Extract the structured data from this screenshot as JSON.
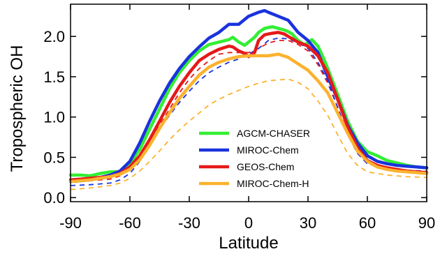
{
  "chart_data": {
    "type": "line",
    "xlabel": "Latitude",
    "ylabel": "Tropospheric OH",
    "xlim": [
      -90,
      90
    ],
    "ylim": [
      -0.05,
      2.4
    ],
    "xticks": [
      -90,
      -60,
      -30,
      0,
      30,
      60,
      90
    ],
    "xtick_labels": [
      "-90",
      "-60",
      "-30",
      "0",
      "30",
      "60",
      "90"
    ],
    "yticks": [
      0.0,
      0.5,
      1.0,
      1.5,
      2.0
    ],
    "ytick_labels": [
      "0.0",
      "0.5",
      "1.0",
      "1.5",
      "2.0"
    ],
    "grid": false,
    "legend_position": "lower-center",
    "series": [
      {
        "name": "AGCM-CHASER",
        "color": "#33ee33",
        "style": "solid",
        "in_legend": true,
        "x": [
          -90,
          -85,
          -80,
          -75,
          -70,
          -65,
          -60,
          -55,
          -50,
          -45,
          -40,
          -35,
          -30,
          -25,
          -20,
          -15,
          -10,
          -8,
          -5,
          -2,
          0,
          3,
          5,
          8,
          10,
          12,
          15,
          18,
          20,
          22,
          25,
          28,
          30,
          32,
          35,
          38,
          40,
          45,
          50,
          55,
          60,
          65,
          70,
          75,
          80,
          85,
          90
        ],
        "y": [
          0.28,
          0.28,
          0.27,
          0.3,
          0.32,
          0.32,
          0.42,
          0.6,
          0.85,
          1.1,
          1.35,
          1.55,
          1.7,
          1.82,
          1.9,
          1.93,
          1.96,
          1.99,
          1.93,
          1.89,
          1.93,
          1.99,
          2.05,
          2.1,
          2.11,
          2.12,
          2.1,
          2.08,
          2.06,
          2.03,
          1.95,
          1.9,
          1.92,
          1.96,
          1.88,
          1.72,
          1.6,
          1.28,
          0.95,
          0.7,
          0.57,
          0.52,
          0.46,
          0.43,
          0.4,
          0.38,
          0.37
        ]
      },
      {
        "name": "MIROC-Chem",
        "color": "#1a33dd",
        "style": "solid",
        "in_legend": true,
        "x": [
          -90,
          -85,
          -80,
          -75,
          -70,
          -65,
          -60,
          -55,
          -50,
          -45,
          -40,
          -35,
          -30,
          -25,
          -20,
          -15,
          -10,
          -5,
          0,
          5,
          8,
          10,
          15,
          20,
          25,
          30,
          35,
          40,
          45,
          50,
          55,
          60,
          65,
          70,
          75,
          80,
          85,
          90
        ],
        "y": [
          0.2,
          0.21,
          0.22,
          0.25,
          0.28,
          0.33,
          0.45,
          0.68,
          0.95,
          1.2,
          1.42,
          1.6,
          1.75,
          1.87,
          1.98,
          2.05,
          2.15,
          2.15,
          2.25,
          2.3,
          2.32,
          2.3,
          2.25,
          2.2,
          2.05,
          1.95,
          1.8,
          1.5,
          1.22,
          0.9,
          0.68,
          0.52,
          0.45,
          0.42,
          0.4,
          0.39,
          0.38,
          0.37
        ]
      },
      {
        "name": "GEOS-Chem",
        "color": "#e61919",
        "style": "solid",
        "in_legend": true,
        "x": [
          -90,
          -85,
          -80,
          -75,
          -70,
          -65,
          -60,
          -55,
          -50,
          -45,
          -40,
          -35,
          -30,
          -25,
          -20,
          -15,
          -10,
          -8,
          -5,
          -2,
          0,
          3,
          5,
          8,
          10,
          12,
          15,
          18,
          20,
          25,
          30,
          35,
          40,
          45,
          50,
          55,
          60,
          65,
          70,
          75,
          80,
          85,
          90
        ],
        "y": [
          0.22,
          0.23,
          0.24,
          0.25,
          0.26,
          0.3,
          0.38,
          0.52,
          0.72,
          0.95,
          1.18,
          1.38,
          1.55,
          1.7,
          1.78,
          1.84,
          1.88,
          1.87,
          1.82,
          1.79,
          1.75,
          1.8,
          1.95,
          2.02,
          2.03,
          2.04,
          2.05,
          2.03,
          2.0,
          1.93,
          1.88,
          1.76,
          1.55,
          1.22,
          0.88,
          0.62,
          0.46,
          0.4,
          0.37,
          0.35,
          0.33,
          0.32,
          0.31
        ]
      },
      {
        "name": "MIROC-Chem-H",
        "color": "#fbb22e",
        "style": "solid",
        "in_legend": true,
        "x": [
          -90,
          -85,
          -80,
          -75,
          -70,
          -65,
          -60,
          -55,
          -50,
          -45,
          -40,
          -35,
          -30,
          -25,
          -20,
          -15,
          -10,
          -5,
          0,
          5,
          10,
          15,
          20,
          25,
          30,
          35,
          40,
          45,
          50,
          55,
          60,
          65,
          70,
          75,
          80,
          85,
          90
        ],
        "y": [
          0.2,
          0.21,
          0.22,
          0.24,
          0.26,
          0.29,
          0.35,
          0.47,
          0.65,
          0.86,
          1.05,
          1.23,
          1.38,
          1.52,
          1.62,
          1.68,
          1.72,
          1.75,
          1.76,
          1.76,
          1.76,
          1.78,
          1.74,
          1.66,
          1.58,
          1.45,
          1.3,
          1.05,
          0.8,
          0.58,
          0.45,
          0.38,
          0.35,
          0.33,
          0.32,
          0.31,
          0.3
        ]
      },
      {
        "name": "",
        "color": "#e61919",
        "style": "dashed",
        "in_legend": false,
        "x": [
          -90,
          -80,
          -70,
          -65,
          -60,
          -55,
          -50,
          -45,
          -40,
          -35,
          -30,
          -25,
          -20,
          -15,
          -10,
          -5,
          0,
          5,
          10,
          15,
          20,
          25,
          30,
          35,
          40,
          45,
          50,
          55,
          60,
          70,
          80,
          90
        ],
        "y": [
          0.2,
          0.21,
          0.23,
          0.27,
          0.35,
          0.48,
          0.68,
          0.9,
          1.1,
          1.3,
          1.47,
          1.6,
          1.7,
          1.78,
          1.8,
          1.8,
          1.8,
          1.85,
          1.92,
          1.95,
          1.95,
          1.9,
          1.82,
          1.65,
          1.42,
          1.12,
          0.8,
          0.55,
          0.42,
          0.36,
          0.32,
          0.3
        ]
      },
      {
        "name": "",
        "color": "#1a33dd",
        "style": "dashed",
        "in_legend": false,
        "x": [
          -90,
          -80,
          -70,
          -65,
          -60,
          -55,
          -50,
          -45,
          -40,
          -35,
          -30,
          -25,
          -20,
          -15,
          -10,
          -5,
          0,
          5,
          10,
          15,
          20,
          25,
          30,
          35,
          40,
          45,
          50,
          55,
          60,
          70,
          80,
          90
        ],
        "y": [
          0.15,
          0.16,
          0.18,
          0.22,
          0.3,
          0.45,
          0.65,
          0.85,
          1.02,
          1.18,
          1.32,
          1.45,
          1.55,
          1.62,
          1.68,
          1.72,
          1.78,
          1.85,
          1.95,
          1.98,
          1.97,
          1.92,
          1.85,
          1.68,
          1.45,
          1.12,
          0.78,
          0.55,
          0.42,
          0.36,
          0.34,
          0.33
        ]
      },
      {
        "name": "",
        "color": "#fbb22e",
        "style": "dashed",
        "in_legend": false,
        "x": [
          -90,
          -80,
          -70,
          -65,
          -60,
          -55,
          -50,
          -45,
          -40,
          -35,
          -30,
          -25,
          -20,
          -15,
          -10,
          -5,
          0,
          5,
          10,
          15,
          20,
          25,
          30,
          35,
          40,
          45,
          50,
          55,
          60,
          70,
          80,
          90
        ],
        "y": [
          0.1,
          0.12,
          0.15,
          0.18,
          0.24,
          0.33,
          0.45,
          0.58,
          0.72,
          0.84,
          0.95,
          1.05,
          1.15,
          1.22,
          1.28,
          1.33,
          1.38,
          1.42,
          1.45,
          1.46,
          1.47,
          1.43,
          1.35,
          1.2,
          1.02,
          0.78,
          0.55,
          0.4,
          0.32,
          0.28,
          0.26,
          0.25
        ]
      }
    ]
  }
}
